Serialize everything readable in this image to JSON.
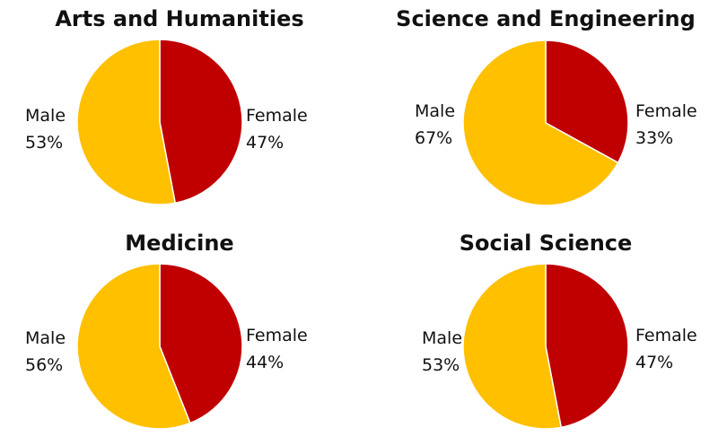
{
  "colors": {
    "female": "#c00000",
    "male": "#ffc000",
    "stroke": "#ffffff"
  },
  "chart_data": [
    {
      "type": "pie",
      "title": "Arts and Humanities",
      "slices": [
        {
          "name": "Female",
          "value": 47,
          "label": "47%",
          "color": "#c00000"
        },
        {
          "name": "Male",
          "value": 53,
          "label": "53%",
          "color": "#ffc000"
        }
      ]
    },
    {
      "type": "pie",
      "title": "Science and Engineering",
      "slices": [
        {
          "name": "Female",
          "value": 33,
          "label": "33%",
          "color": "#c00000"
        },
        {
          "name": "Male",
          "value": 67,
          "label": "67%",
          "color": "#ffc000"
        }
      ]
    },
    {
      "type": "pie",
      "title": "Medicine",
      "slices": [
        {
          "name": "Female",
          "value": 44,
          "label": "44%",
          "color": "#c00000"
        },
        {
          "name": "Male",
          "value": 56,
          "label": "56%",
          "color": "#ffc000"
        }
      ]
    },
    {
      "type": "pie",
      "title": "Social Science",
      "slices": [
        {
          "name": "Female",
          "value": 47,
          "label": "47%",
          "color": "#c00000"
        },
        {
          "name": "Male",
          "value": 53,
          "label": "53%",
          "color": "#ffc000"
        }
      ]
    }
  ]
}
